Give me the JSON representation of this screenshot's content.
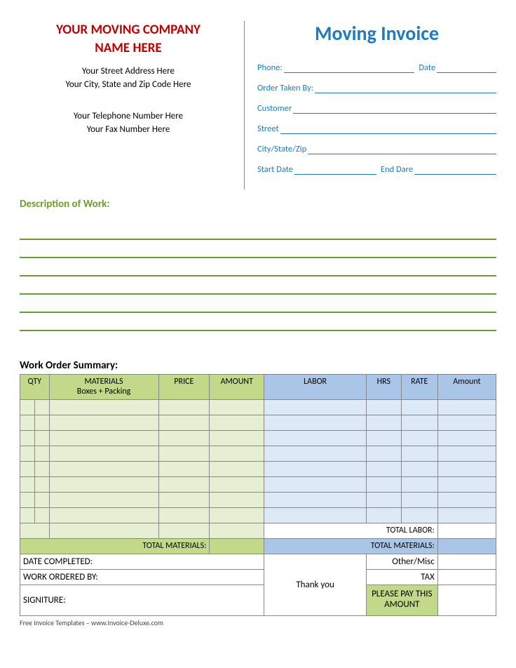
{
  "company": {
    "title_line1": "YOUR MOVING COMPANY",
    "title_line2": "NAME HERE",
    "street": "Your Street Address Here",
    "citystate": "Your City, State and Zip Code Here",
    "phone": "Your Telephone Number Here",
    "fax": "Your Fax Number Here"
  },
  "invoice": {
    "title": "Moving Invoice",
    "fields": {
      "phone": "Phone:",
      "date": "Date",
      "order_taken_by": "Order Taken By:",
      "customer": "Customer",
      "street": "Street",
      "citystatezip": "City/State/Zip",
      "start_date": "Start Date",
      "end_date": "End Dare"
    }
  },
  "description": {
    "heading": "Description of Work:",
    "line_count": 6,
    "line_color": "#6b9e2e"
  },
  "summary": {
    "heading": "Work Order Summary:",
    "headers_left": {
      "qty": "QTY",
      "materials_l1": "MATERIALS",
      "materials_l2": "Boxes + Packing",
      "price": "PRICE",
      "amount": "AMOUNT"
    },
    "headers_right": {
      "labor": "LABOR",
      "hrs": "HRS",
      "rate": "RATE",
      "amount": "Amount"
    },
    "body_rows": 8,
    "left_body_cols": 5,
    "total_labor": "TOTAL LABOR:",
    "total_materials_left": "TOTAL MATERIALS:",
    "total_materials_right": "TOTAL MATERIALS:",
    "footer": {
      "date_completed": "DATE COMPLETED:",
      "work_ordered_by": "WORK ORDERED BY:",
      "signature": "SIGNITURE:",
      "thank_you": "Thank you",
      "other_misc": "Other/Misc",
      "tax": "TAX",
      "please_pay": "PLEASE PAY THIS AMOUNT"
    },
    "colors": {
      "header_green": "#c2d98a",
      "header_blue": "#a9c5e8",
      "body_green": "#e6efd3",
      "body_blue": "#dde9f6"
    }
  },
  "credit": "Free Invoice Templates – www.Invoice-Deluxe.com"
}
